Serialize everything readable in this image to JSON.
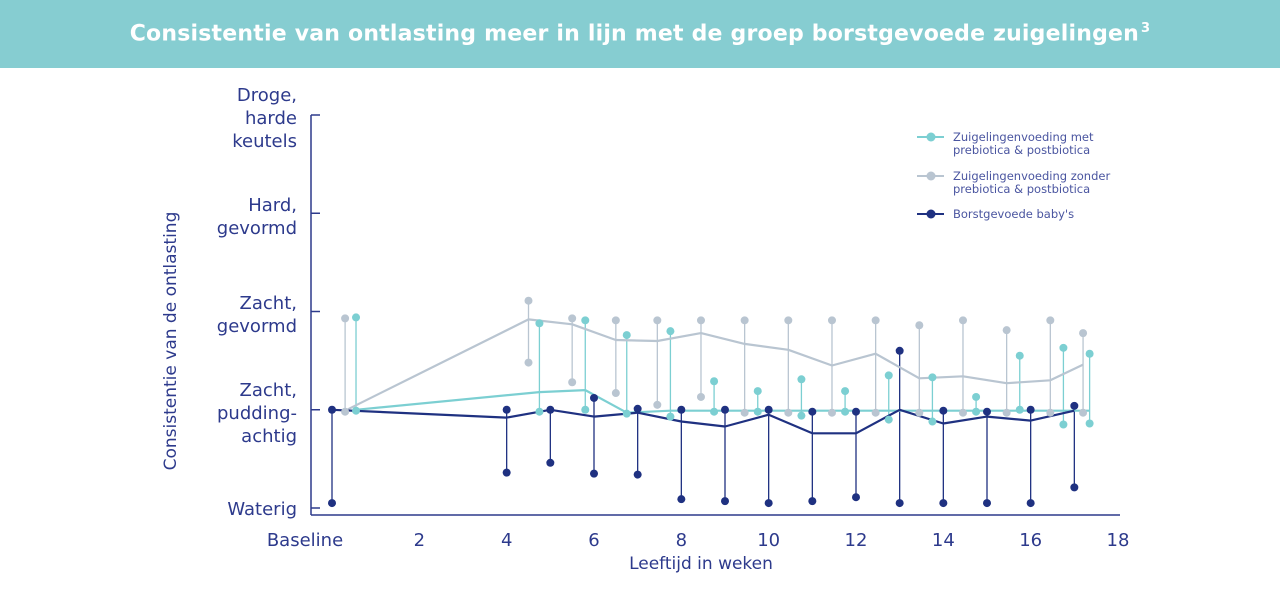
{
  "header": {
    "title": "Consistentie van ontlasting meer in lijn met de groep borstgevoede zuigelingen",
    "footnote": "3"
  },
  "colors": {
    "banner": "#86cdd1",
    "axis": "#2d3a8c",
    "series_prebiotica": "#7ccfd2",
    "series_zonder": "#b9c5d1",
    "series_borst": "#1f3181"
  },
  "chart_data": {
    "type": "line",
    "title": "",
    "xlabel": "Leeftijd in weken",
    "ylabel": "Consistentie van de ontlasting",
    "x_ticks": [
      {
        "value": 0,
        "label": "Baseline"
      },
      {
        "value": 2,
        "label": "2"
      },
      {
        "value": 4,
        "label": "4"
      },
      {
        "value": 6,
        "label": "6"
      },
      {
        "value": 8,
        "label": "8"
      },
      {
        "value": 10,
        "label": "10"
      },
      {
        "value": 12,
        "label": "12"
      },
      {
        "value": 14,
        "label": "14"
      },
      {
        "value": 16,
        "label": "16"
      },
      {
        "value": 18,
        "label": "18"
      }
    ],
    "xlim": [
      0,
      18
    ],
    "ylim": [
      1,
      5
    ],
    "y_ticks": [
      {
        "value": 1,
        "lines": [
          "Waterig"
        ]
      },
      {
        "value": 2,
        "lines": [
          "Zacht,",
          "pudding-",
          "achtig"
        ]
      },
      {
        "value": 3,
        "lines": [
          "Zacht,",
          "gevormd"
        ]
      },
      {
        "value": 4,
        "lines": [
          "Hard,",
          "gevormd"
        ]
      },
      {
        "value": 5,
        "lines": [
          "Droge,",
          "harde",
          "keutels"
        ]
      }
    ],
    "legend_position": "top-right",
    "series": [
      {
        "name": "Zuigelingenvoeding met prebiotica & postbiotica",
        "name_lines": [
          "Zuigelingenvoeding met",
          "prebiotica & postbiotica"
        ],
        "color": "#7ccfd2",
        "x": [
          0.55,
          4.75,
          5.8,
          6.75,
          7.75,
          8.75,
          9.75,
          10.75,
          11.75,
          12.75,
          13.75,
          14.75,
          15.75,
          16.75,
          17.35
        ],
        "median": [
          2.0,
          2.18,
          2.2,
          1.97,
          1.99,
          1.99,
          1.99,
          1.99,
          1.99,
          1.99,
          1.99,
          1.99,
          1.99,
          1.99,
          1.99
        ],
        "low": [
          1.99,
          1.98,
          2.0,
          1.96,
          1.93,
          1.98,
          1.98,
          1.94,
          1.98,
          1.9,
          1.88,
          1.98,
          2.0,
          1.85,
          1.86
        ],
        "high": [
          2.94,
          2.88,
          2.91,
          2.76,
          2.8,
          2.29,
          2.19,
          2.31,
          2.19,
          2.35,
          2.33,
          2.13,
          2.55,
          2.63,
          2.57
        ]
      },
      {
        "name": "Zuigelingenvoeding zonder prebiotica & postbiotica",
        "name_lines": [
          "Zuigelingenvoeding zonder",
          "prebiotica & postbiotica"
        ],
        "color": "#b9c5d1",
        "x": [
          0.3,
          4.5,
          5.5,
          6.5,
          7.45,
          8.45,
          9.45,
          10.45,
          11.45,
          12.45,
          13.45,
          14.45,
          15.45,
          16.45,
          17.2
        ],
        "median": [
          1.99,
          2.92,
          2.87,
          2.71,
          2.7,
          2.78,
          2.67,
          2.61,
          2.45,
          2.57,
          2.32,
          2.34,
          2.27,
          2.3,
          2.46
        ],
        "low": [
          1.98,
          2.48,
          2.28,
          2.17,
          2.05,
          2.13,
          1.97,
          1.97,
          1.97,
          1.97,
          1.97,
          1.97,
          1.97,
          1.97,
          1.97
        ],
        "high": [
          2.93,
          3.11,
          2.93,
          2.91,
          2.91,
          2.91,
          2.91,
          2.91,
          2.91,
          2.91,
          2.86,
          2.91,
          2.81,
          2.91,
          2.78
        ]
      },
      {
        "name": "Borstgevoede baby's",
        "name_lines": [
          "Borstgevoede baby's"
        ],
        "color": "#1f3181",
        "x": [
          0.0,
          4.0,
          5.0,
          6.0,
          7.0,
          8.0,
          9.0,
          10.0,
          11.0,
          12.0,
          13.0,
          14.0,
          15.0,
          16.0,
          17.0
        ],
        "median": [
          2.0,
          1.92,
          2.0,
          1.93,
          1.97,
          1.88,
          1.83,
          1.95,
          1.76,
          1.76,
          2.0,
          1.86,
          1.93,
          1.89,
          1.99
        ],
        "low": [
          1.05,
          1.36,
          1.46,
          1.35,
          1.34,
          1.09,
          1.07,
          1.05,
          1.07,
          1.11,
          1.05,
          1.05,
          1.05,
          1.05,
          1.21
        ],
        "high": [
          2.0,
          2.0,
          2.0,
          2.12,
          2.01,
          2.0,
          2.0,
          2.0,
          1.98,
          1.98,
          2.6,
          1.99,
          1.98,
          2.0,
          2.04
        ]
      }
    ]
  }
}
